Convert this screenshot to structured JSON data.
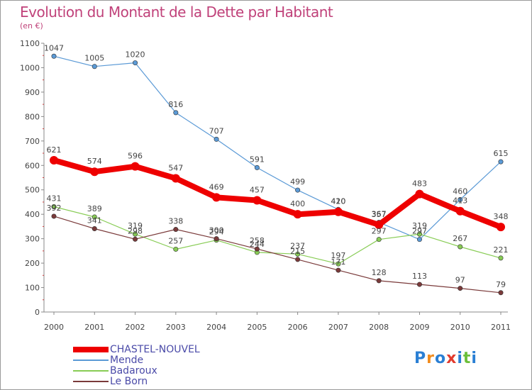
{
  "chart_data": {
    "type": "line",
    "title": "Evolution du Montant de la Dette par Habitant",
    "subtitle": "(en €)",
    "x": [
      "2000",
      "2001",
      "2002",
      "2003",
      "2004",
      "2005",
      "2006",
      "2007",
      "2008",
      "2009",
      "2010",
      "2011"
    ],
    "ylim": [
      0,
      1100
    ],
    "yticks": [
      0,
      100,
      200,
      300,
      400,
      500,
      600,
      700,
      800,
      900,
      1000,
      1100
    ],
    "grid": false,
    "legend_position": "bottom-left",
    "series": [
      {
        "name": "Mende",
        "color": "#5b9ad6",
        "width": 1.2,
        "values": [
          1047,
          1005,
          1020,
          816,
          707,
          591,
          499,
          420,
          367,
          297,
          460,
          615
        ]
      },
      {
        "name": "Badaroux",
        "color": "#88cc55",
        "width": 1.2,
        "values": [
          431,
          389,
          319,
          257,
          294,
          244,
          237,
          197,
          297,
          319,
          267,
          221
        ]
      },
      {
        "name": "Le Born",
        "color": "#7a3a3a",
        "width": 1.2,
        "values": [
          392,
          341,
          298,
          338,
          300,
          258,
          215,
          171,
          128,
          113,
          97,
          79
        ]
      },
      {
        "name": "CHASTEL-NOUVEL",
        "color": "#ee0000",
        "width": 8,
        "values": [
          621,
          574,
          596,
          547,
          469,
          457,
          400,
          410,
          357,
          483,
          413,
          348
        ]
      }
    ],
    "legend_order": [
      "CHASTEL-NOUVEL",
      "Mende",
      "Badaroux",
      "Le Born"
    ]
  },
  "logo": {
    "text": "Proxiti",
    "colors": [
      "#2a7fd4",
      "#f28c1e",
      "#2a7fd4",
      "#e23b2e",
      "#2a7fd4",
      "#6cbf3a",
      "#2a7fd4"
    ]
  }
}
